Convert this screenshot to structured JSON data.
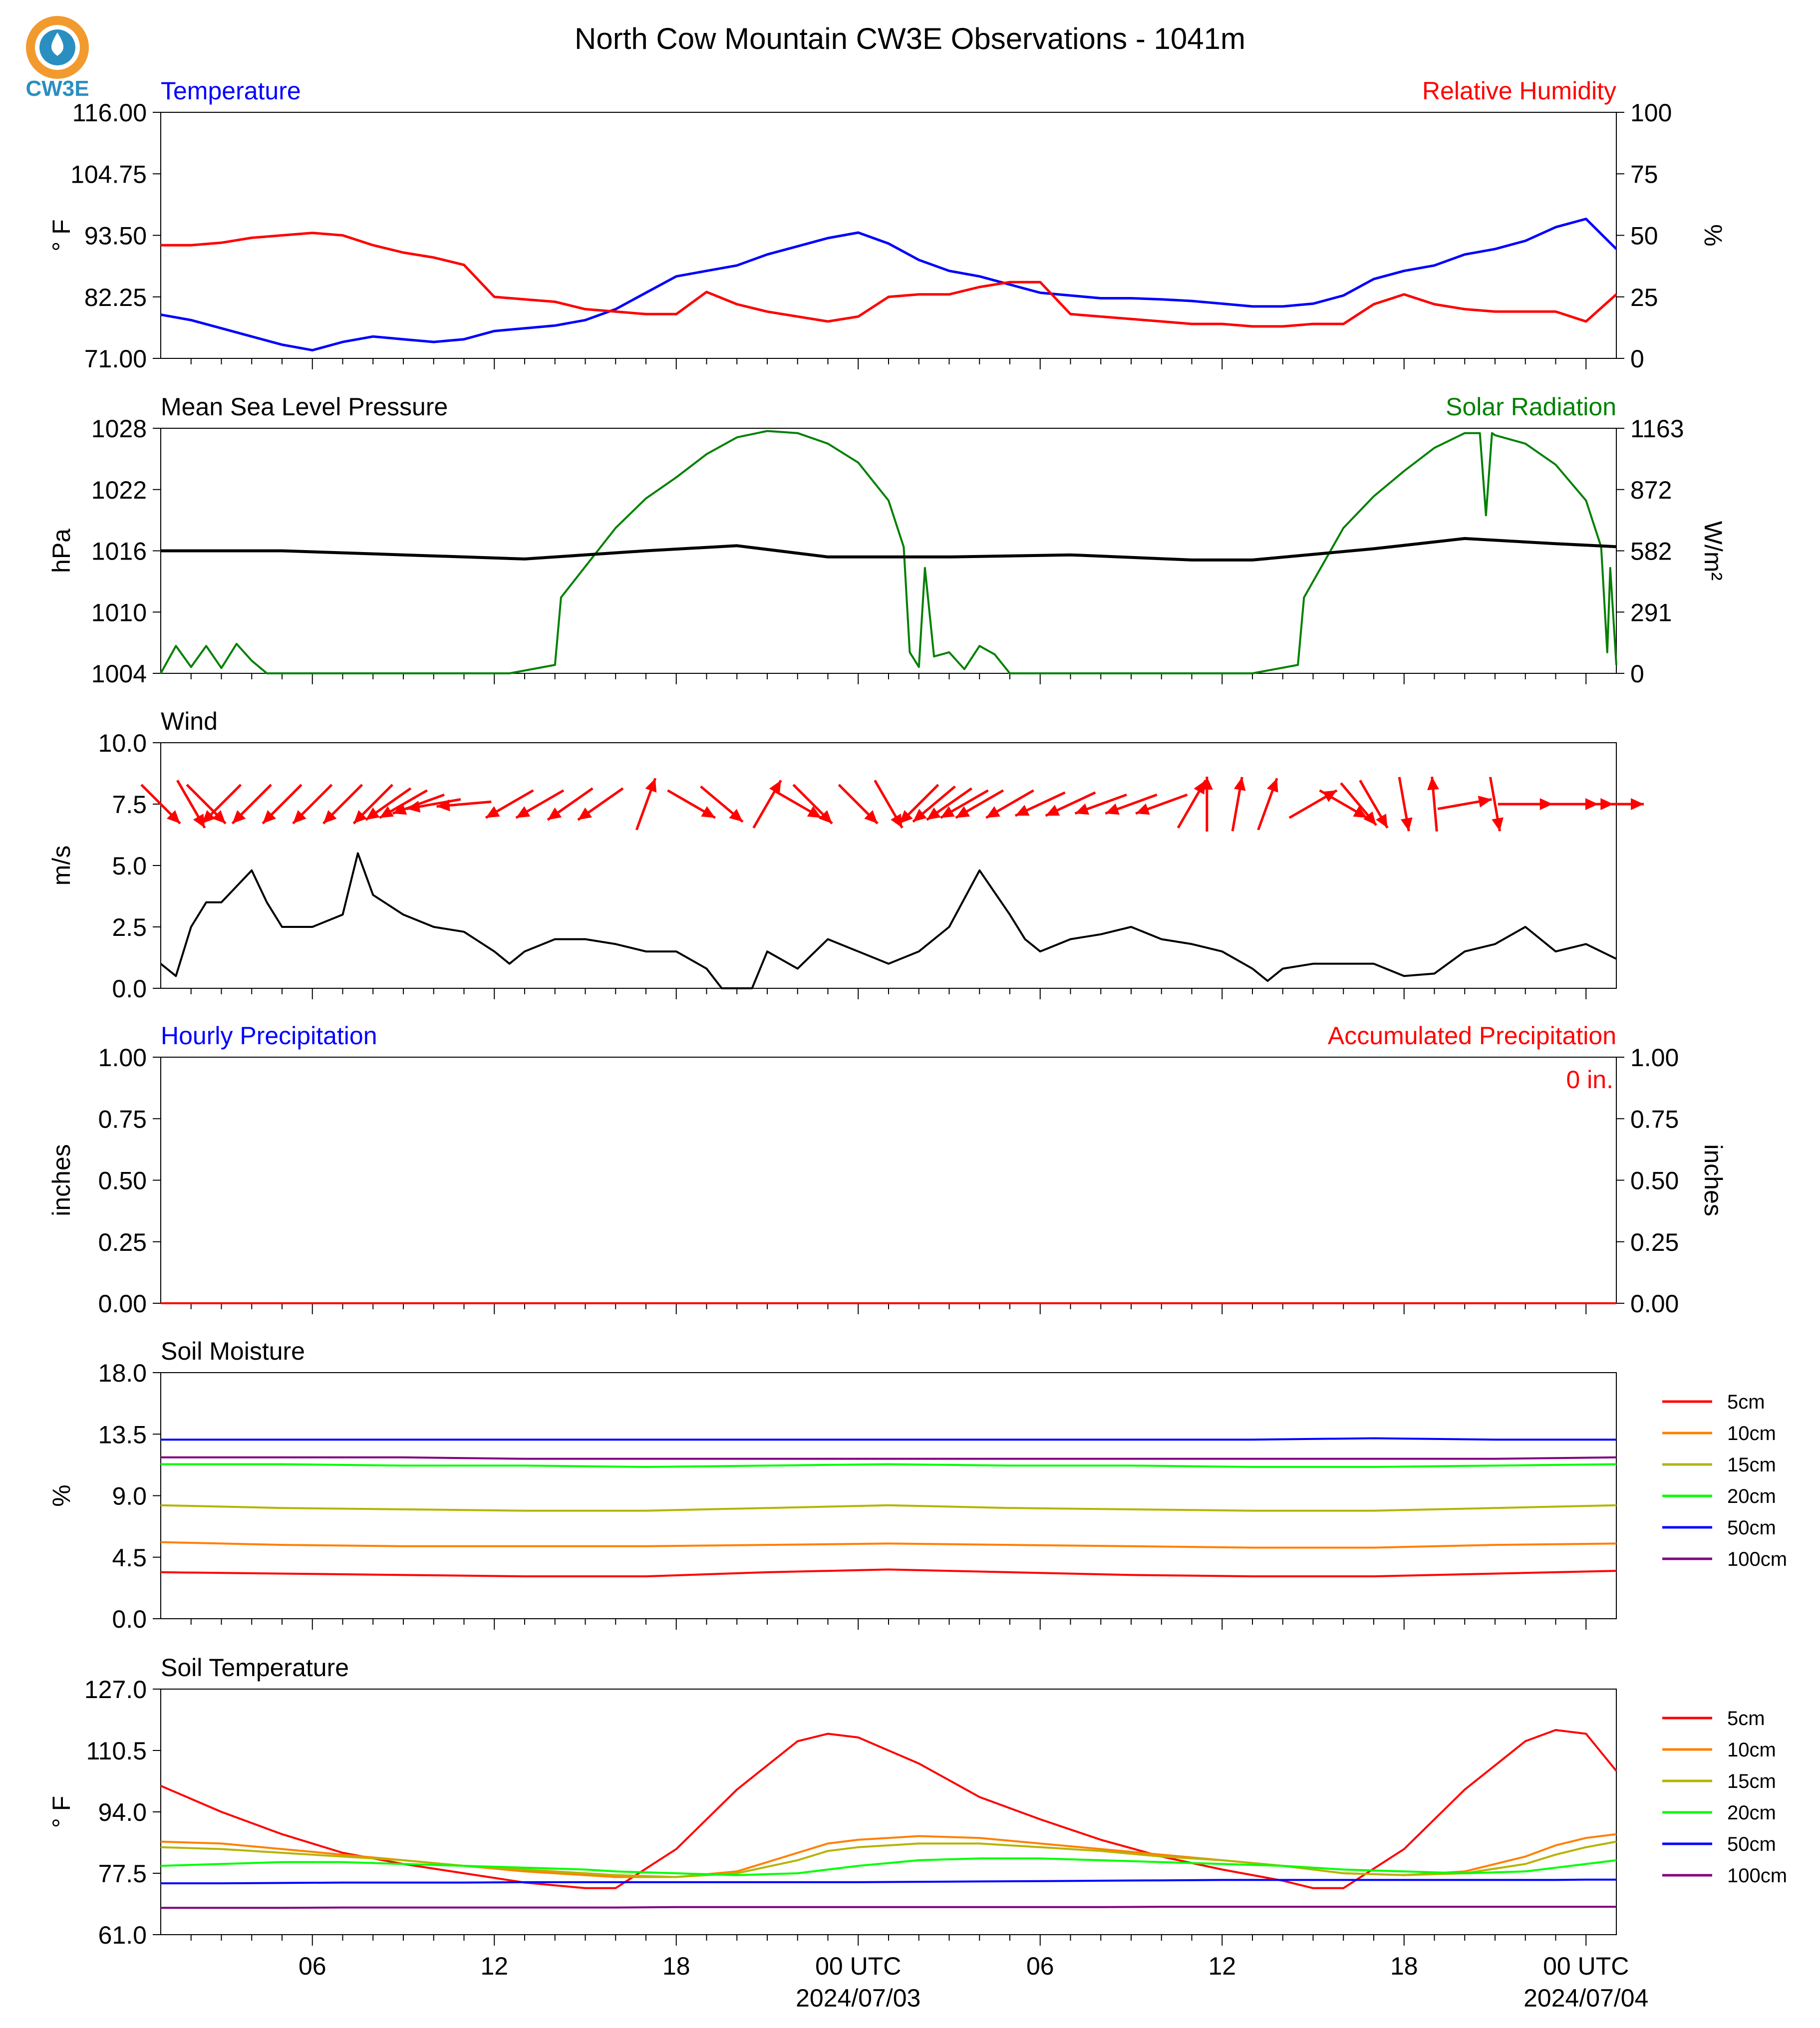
{
  "title": "North Cow Mountain CW3E Observations - 1041m",
  "logo": {
    "text": "CW3E",
    "colors": {
      "sun": "#f29a2e",
      "ring": "#2a8fc0",
      "drop": "#2a6fb0"
    }
  },
  "colors": {
    "temperature": "#0000ff",
    "humidity": "#ff0000",
    "pressure": "#000000",
    "solar": "#008000",
    "wind": "#000000",
    "wind_arrow": "#ff0000",
    "hourly_precip": "#0000ff",
    "accum_precip": "#ff0000"
  },
  "x_axis": {
    "tick_labels": [
      "06",
      "12",
      "18",
      "00 UTC",
      "06",
      "12",
      "18",
      "00 UTC"
    ],
    "tick_hours": [
      6,
      12,
      18,
      24,
      30,
      36,
      42,
      48
    ],
    "date_labels": [
      "2024/07/03",
      "2024/07/04"
    ],
    "hour_range": [
      1,
      49
    ]
  },
  "panels": {
    "temp_rh": {
      "left_label": "Temperature",
      "right_label": "Relative Humidity",
      "left_unit": "° F",
      "right_unit": "%",
      "left_ticks": [
        "116.00",
        "104.75",
        "93.50",
        "82.25",
        "71.00"
      ],
      "right_ticks": [
        "100",
        "75",
        "50",
        "25",
        "0"
      ]
    },
    "pressure_solar": {
      "left_label": "Mean Sea Level Pressure",
      "right_label": "Solar Radiation",
      "left_unit": "hPa",
      "right_unit": "W/m²",
      "left_ticks": [
        "1028",
        "1022",
        "1016",
        "1010",
        "1004"
      ],
      "right_ticks": [
        "1163",
        "872",
        "582",
        "291",
        "0"
      ]
    },
    "wind": {
      "left_label": "Wind",
      "left_unit": "m/s",
      "left_ticks": [
        "10.0",
        "7.5",
        "5.0",
        "2.5",
        "0.0"
      ]
    },
    "precip": {
      "left_label": "Hourly Precipitation",
      "right_label": "Accumulated Precipitation",
      "left_unit": "inches",
      "right_unit": "inches",
      "left_ticks": [
        "1.00",
        "0.75",
        "0.50",
        "0.25",
        "0.00"
      ],
      "right_ticks": [
        "1.00",
        "0.75",
        "0.50",
        "0.25",
        "0.00"
      ],
      "accum_text": "0 in."
    },
    "soil_moisture": {
      "left_label": "Soil Moisture",
      "left_unit": "%",
      "left_ticks": [
        "18.0",
        "13.5",
        "9.0",
        "4.5",
        "0.0"
      ],
      "legend": [
        "5cm",
        "10cm",
        "15cm",
        "20cm",
        "50cm",
        "100cm"
      ]
    },
    "soil_temp": {
      "left_label": "Soil Temperature",
      "left_unit": "° F",
      "left_ticks": [
        "127.0",
        "110.5",
        "94.0",
        "77.5",
        "61.0"
      ],
      "legend": [
        "5cm",
        "10cm",
        "15cm",
        "20cm",
        "50cm",
        "100cm"
      ]
    }
  },
  "depth_colors": [
    "#ff0000",
    "#ff8000",
    "#b4b400",
    "#00ff00",
    "#0000ff",
    "#800080"
  ],
  "chart_data": [
    {
      "type": "line",
      "id": "temperature",
      "x_hours": [
        1,
        2,
        3,
        4,
        5,
        6,
        7,
        8,
        9,
        10,
        11,
        12,
        13,
        14,
        15,
        16,
        17,
        18,
        19,
        20,
        21,
        22,
        23,
        24,
        25,
        26,
        27,
        28,
        29,
        30,
        31,
        32,
        33,
        34,
        35,
        36,
        37,
        38,
        39,
        40,
        41,
        42,
        43,
        44,
        45,
        46,
        47,
        48,
        49
      ],
      "y": [
        79,
        78,
        76.5,
        75,
        73.5,
        72.5,
        74,
        75,
        74.5,
        74,
        74.5,
        76,
        76.5,
        77,
        78,
        80,
        83,
        86,
        87,
        88,
        90,
        91.5,
        93,
        94,
        92,
        89,
        87,
        86,
        84.5,
        83,
        82.5,
        82,
        82,
        81.8,
        81.5,
        81,
        80.5,
        80.5,
        81,
        82.5,
        85.5,
        87,
        88,
        90,
        91,
        92.5,
        95,
        96.5,
        91
      ],
      "ylim": [
        71,
        116
      ],
      "unit": "° F"
    },
    {
      "type": "line",
      "id": "relative_humidity",
      "x_hours": [
        1,
        2,
        3,
        4,
        5,
        6,
        7,
        8,
        9,
        10,
        11,
        12,
        13,
        14,
        15,
        16,
        17,
        18,
        19,
        20,
        21,
        22,
        23,
        24,
        25,
        26,
        27,
        28,
        29,
        30,
        31,
        32,
        33,
        34,
        35,
        36,
        37,
        38,
        39,
        40,
        41,
        42,
        43,
        44,
        45,
        46,
        47,
        48,
        49
      ],
      "y": [
        46,
        46,
        47,
        49,
        50,
        51,
        50,
        46,
        43,
        41,
        38,
        25,
        24,
        23,
        20,
        19,
        18,
        18,
        27,
        22,
        19,
        17,
        15,
        17,
        25,
        26,
        26,
        29,
        31,
        31,
        18,
        17,
        16,
        15,
        14,
        14,
        13,
        13,
        14,
        14,
        22,
        26,
        22,
        20,
        19,
        19,
        19,
        15,
        26
      ],
      "ylim": [
        0,
        100
      ],
      "unit": "%"
    },
    {
      "type": "line",
      "id": "mean_sea_level_pressure",
      "x_hours": [
        1,
        5,
        9,
        13,
        17,
        20,
        23,
        27,
        31,
        35,
        37,
        41,
        44,
        47,
        49
      ],
      "y": [
        1016,
        1016,
        1015.6,
        1015.2,
        1016,
        1016.5,
        1015.4,
        1015.4,
        1015.6,
        1015.1,
        1015.1,
        1016.2,
        1017.2,
        1016.7,
        1016.4
      ],
      "ylim": [
        1004,
        1028
      ],
      "unit": "hPa"
    },
    {
      "type": "line",
      "id": "solar_radiation",
      "x_hours": [
        1,
        1.5,
        2,
        2.5,
        3,
        3.5,
        4,
        4.5,
        10,
        12.5,
        14,
        14.2,
        16,
        17,
        18,
        19,
        20,
        21,
        22,
        23,
        24,
        25,
        25.5,
        25.7,
        26,
        26.2,
        26.5,
        27,
        27.5,
        28,
        28.5,
        29,
        35.5,
        37,
        38.5,
        38.7,
        40,
        41,
        42,
        43,
        44,
        44.5,
        44.7,
        44.9,
        45,
        46,
        47,
        48,
        48.5,
        48.7,
        48.8,
        49
      ],
      "y": [
        0,
        130,
        30,
        130,
        25,
        140,
        60,
        0,
        0,
        0,
        40,
        360,
        690,
        830,
        930,
        1040,
        1120,
        1150,
        1140,
        1090,
        1000,
        820,
        600,
        100,
        30,
        500,
        80,
        100,
        20,
        130,
        90,
        0,
        0,
        0,
        40,
        360,
        690,
        840,
        960,
        1070,
        1140,
        1140,
        750,
        1140,
        1130,
        1090,
        990,
        820,
        600,
        100,
        500,
        40
      ],
      "ylim": [
        0,
        1163
      ],
      "unit": "W/m²"
    },
    {
      "type": "line",
      "id": "wind_speed",
      "x_hours": [
        1,
        1.5,
        2,
        2.5,
        3,
        4,
        4.5,
        5,
        6,
        7,
        7.5,
        8,
        9,
        10,
        11,
        12,
        12.5,
        13,
        14,
        15,
        16,
        17,
        18,
        19,
        19.5,
        20.5,
        21,
        22,
        23,
        24,
        25,
        26,
        27,
        28,
        29,
        29.5,
        30,
        31,
        32,
        33,
        34,
        35,
        36,
        37,
        37.5,
        38,
        39,
        40,
        41,
        42,
        43,
        44,
        45,
        46,
        47,
        48,
        49
      ],
      "y": [
        1,
        0.5,
        2.5,
        3.5,
        3.5,
        4.8,
        3.5,
        2.5,
        2.5,
        3,
        5.5,
        3.8,
        3,
        2.5,
        2.3,
        1.5,
        1,
        1.5,
        2,
        2,
        1.8,
        1.5,
        1.5,
        0.8,
        0,
        0,
        1.5,
        0.8,
        2,
        1.5,
        1,
        1.5,
        2.5,
        4.8,
        3,
        2,
        1.5,
        2,
        2.2,
        2.5,
        2,
        1.8,
        1.5,
        0.8,
        0.3,
        0.8,
        1,
        1,
        1,
        0.5,
        0.6,
        1.5,
        1.8,
        2.5,
        1.5,
        1.8,
        1.2
      ],
      "ylim": [
        0,
        10
      ],
      "unit": "m/s"
    },
    {
      "type": "line",
      "id": "hourly_precipitation",
      "x_hours": [
        1,
        49
      ],
      "y": [
        0,
        0
      ],
      "ylim": [
        0,
        1
      ],
      "unit": "inches"
    },
    {
      "type": "line",
      "id": "accumulated_precipitation",
      "x_hours": [
        1,
        49
      ],
      "y": [
        0,
        0
      ],
      "ylim": [
        0,
        1
      ],
      "unit": "inches"
    },
    {
      "type": "line",
      "id": "soil_moisture",
      "x_hours": [
        1,
        5,
        9,
        13,
        17,
        21,
        25,
        29,
        33,
        37,
        41,
        45,
        49
      ],
      "ylim": [
        0,
        18
      ],
      "unit": "%",
      "series": [
        {
          "name": "5cm",
          "values": [
            3.4,
            3.3,
            3.2,
            3.1,
            3.1,
            3.4,
            3.6,
            3.4,
            3.2,
            3.1,
            3.1,
            3.3,
            3.5
          ]
        },
        {
          "name": "10cm",
          "values": [
            5.6,
            5.4,
            5.3,
            5.3,
            5.3,
            5.4,
            5.5,
            5.4,
            5.3,
            5.2,
            5.2,
            5.4,
            5.5
          ]
        },
        {
          "name": "15cm",
          "values": [
            8.3,
            8.1,
            8.0,
            7.9,
            7.9,
            8.1,
            8.3,
            8.1,
            8.0,
            7.9,
            7.9,
            8.1,
            8.3
          ]
        },
        {
          "name": "20cm",
          "values": [
            11.3,
            11.3,
            11.2,
            11.2,
            11.1,
            11.2,
            11.3,
            11.2,
            11.2,
            11.1,
            11.1,
            11.2,
            11.3
          ]
        },
        {
          "name": "50cm",
          "values": [
            13.1,
            13.1,
            13.1,
            13.1,
            13.1,
            13.1,
            13.1,
            13.1,
            13.1,
            13.1,
            13.2,
            13.1,
            13.1
          ]
        },
        {
          "name": "100cm",
          "values": [
            11.8,
            11.8,
            11.8,
            11.7,
            11.7,
            11.7,
            11.7,
            11.7,
            11.7,
            11.7,
            11.7,
            11.7,
            11.8
          ]
        }
      ]
    },
    {
      "type": "line",
      "id": "soil_temperature",
      "x_hours": [
        1,
        3,
        5,
        7,
        9,
        11,
        13,
        15,
        16,
        18,
        20,
        22,
        23,
        24,
        26,
        28,
        30,
        32,
        34,
        36,
        38,
        39,
        40,
        42,
        44,
        46,
        47,
        48,
        49
      ],
      "ylim": [
        61,
        127
      ],
      "unit": "° F",
      "series": [
        {
          "name": "5cm",
          "values": [
            101,
            94,
            88,
            83,
            80,
            77.5,
            75,
            73.5,
            73.5,
            84,
            100,
            113,
            115,
            114,
            107,
            98,
            92,
            86.5,
            82,
            78.5,
            75.5,
            73.5,
            73.5,
            84,
            100,
            113,
            116,
            115,
            105
          ]
        },
        {
          "name": "10cm",
          "values": [
            86,
            85.5,
            84,
            82.5,
            81,
            79.5,
            78,
            77,
            76.5,
            76.5,
            78,
            83,
            85.5,
            86.5,
            87.5,
            87,
            85.5,
            84,
            82.5,
            81,
            79.5,
            78.5,
            77.5,
            77,
            78,
            82,
            85,
            87,
            88
          ]
        },
        {
          "name": "15cm",
          "values": [
            84.5,
            84,
            83,
            82,
            81,
            79.5,
            78.5,
            77.5,
            77,
            76.5,
            77.5,
            81,
            83.5,
            84.5,
            85.5,
            85.5,
            84.5,
            83.5,
            82,
            81,
            79.5,
            78.5,
            77.5,
            77,
            77.5,
            80,
            82.5,
            84.5,
            86
          ]
        },
        {
          "name": "20cm",
          "values": [
            79.5,
            80,
            80.5,
            80.5,
            80,
            79.5,
            79,
            78.5,
            78,
            77.5,
            77,
            77.5,
            78.5,
            79.5,
            81,
            81.5,
            81.5,
            81,
            80.5,
            80,
            79.5,
            79,
            78.5,
            78,
            77.5,
            78,
            79,
            80,
            81
          ]
        },
        {
          "name": "50cm",
          "values": [
            74.8,
            74.8,
            74.9,
            75,
            75,
            75,
            75.1,
            75.1,
            75.1,
            75.1,
            75.1,
            75.1,
            75.1,
            75.1,
            75.2,
            75.3,
            75.4,
            75.5,
            75.6,
            75.7,
            75.7,
            75.7,
            75.7,
            75.7,
            75.7,
            75.7,
            75.7,
            75.8,
            75.8
          ]
        },
        {
          "name": "100cm",
          "values": [
            68.2,
            68.2,
            68.2,
            68.3,
            68.3,
            68.3,
            68.3,
            68.3,
            68.3,
            68.4,
            68.4,
            68.4,
            68.4,
            68.4,
            68.4,
            68.4,
            68.4,
            68.4,
            68.5,
            68.5,
            68.5,
            68.5,
            68.5,
            68.5,
            68.5,
            68.5,
            68.5,
            68.5,
            68.5
          ]
        }
      ]
    },
    {
      "type": "vector",
      "id": "wind_direction_arrows",
      "x_hours": [
        1,
        2,
        2.5,
        3,
        4,
        5,
        6,
        7,
        8,
        8.5,
        9,
        9.5,
        10,
        11,
        12.5,
        13.5,
        14.5,
        15.5,
        17,
        18.5,
        19.5,
        21,
        22,
        22.5,
        24,
        25,
        26,
        26.5,
        27,
        27.5,
        28,
        29,
        30,
        31,
        32,
        33,
        34,
        35,
        35.5,
        36.5,
        37.5,
        39,
        40,
        40.5,
        41,
        42,
        43,
        44,
        45,
        46,
        47.5,
        48,
        49
      ],
      "y": [
        7.5,
        7.5,
        7.5,
        7.5,
        7.5,
        7.5,
        7.5,
        7.5,
        7.5,
        7.5,
        7.5,
        7.5,
        7.5,
        7.5,
        7.5,
        7.5,
        7.5,
        7.5,
        7.5,
        7.5,
        7.5,
        7.5,
        7.5,
        7.5,
        7.5,
        7.5,
        7.5,
        7.5,
        7.5,
        7.5,
        7.5,
        7.5,
        7.5,
        7.5,
        7.5,
        7.5,
        7.5,
        7.5,
        7.5,
        7.5,
        7.5,
        7.5,
        7.5,
        7.5,
        7.5,
        7.5,
        7.5,
        7.5,
        7.5,
        7.5,
        7.5,
        7.5,
        7.5
      ],
      "direction_deg": [
        315,
        330,
        315,
        45,
        45,
        45,
        45,
        45,
        45,
        55,
        60,
        70,
        80,
        85,
        60,
        60,
        55,
        55,
        200,
        300,
        310,
        210,
        300,
        315,
        315,
        330,
        45,
        50,
        55,
        60,
        60,
        60,
        65,
        65,
        70,
        70,
        70,
        210,
        180,
        190,
        200,
        240,
        300,
        320,
        330,
        350,
        175,
        260,
        350,
        270,
        270,
        270,
        270
      ]
    }
  ]
}
